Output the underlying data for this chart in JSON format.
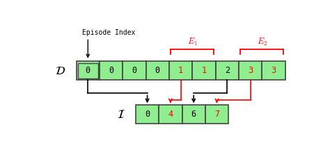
{
  "D_values": [
    "0",
    "0",
    "0",
    "0",
    "1",
    "1",
    "2",
    "3",
    "3"
  ],
  "D_text_colors": [
    "black",
    "black",
    "black",
    "black",
    "red",
    "red",
    "black",
    "red",
    "red"
  ],
  "I_values": [
    "0",
    "4",
    "6",
    "7"
  ],
  "I_text_colors": [
    "black",
    "red",
    "black",
    "red"
  ],
  "bg_color": "#ffffff",
  "cell_fill": "#90ee90",
  "cell_edge": "#444444",
  "bracket_color": "red",
  "episode_index_label": "Episode Index",
  "D_label": "$\\mathcal{D}$",
  "I_label": "$\\mathcal{I}$",
  "E1_label": "$E_1$",
  "E2_label": "$E_2$",
  "D_connectors_black": [
    0,
    2
  ],
  "D_connectors_red": [
    1,
    3
  ],
  "D_targets_black": [
    0,
    6
  ],
  "D_targets_red": [
    4,
    7
  ]
}
